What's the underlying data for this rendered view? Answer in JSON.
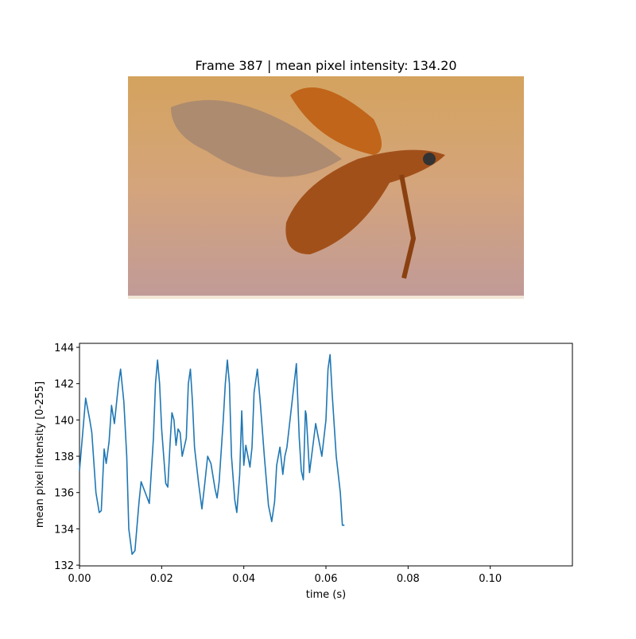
{
  "image_panel": {
    "title": "Frame 387 | mean pixel intensity: 134.20"
  },
  "chart_data": {
    "type": "line",
    "xlabel": "time (s)",
    "ylabel": "mean pixel intensity [0-255]",
    "xlim": [
      0,
      0.12
    ],
    "ylim": [
      131.96,
      144.22
    ],
    "xticks": [
      {
        "value": 0,
        "label": "0.00"
      },
      {
        "value": 0.02,
        "label": "0.02"
      },
      {
        "value": 0.04,
        "label": "0.04"
      },
      {
        "value": 0.06,
        "label": "0.06"
      },
      {
        "value": 0.08,
        "label": "0.08"
      },
      {
        "value": 0.1,
        "label": "0.10"
      }
    ],
    "yticks": [
      132,
      134,
      136,
      138,
      140,
      142,
      144
    ],
    "series": [
      {
        "color": "#1f77b4",
        "x": [
          0,
          0.0015,
          0.0025,
          0.003,
          0.004,
          0.0048,
          0.0053,
          0.006,
          0.0065,
          0.0072,
          0.0078,
          0.0085,
          0.0095,
          0.01,
          0.0108,
          0.0115,
          0.012,
          0.0128,
          0.0135,
          0.0145,
          0.015,
          0.016,
          0.017,
          0.018,
          0.0185,
          0.019,
          0.0195,
          0.02,
          0.021,
          0.0215,
          0.022,
          0.0225,
          0.023,
          0.0235,
          0.024,
          0.0245,
          0.025,
          0.026,
          0.0265,
          0.027,
          0.0275,
          0.028,
          0.029,
          0.0298,
          0.0305,
          0.0312,
          0.032,
          0.033,
          0.0335,
          0.034,
          0.035,
          0.0355,
          0.036,
          0.0365,
          0.037,
          0.0378,
          0.0383,
          0.039,
          0.0395,
          0.04,
          0.0405,
          0.041,
          0.0415,
          0.042,
          0.0425,
          0.0433,
          0.044,
          0.045,
          0.046,
          0.0468,
          0.0475,
          0.048,
          0.0488,
          0.0495,
          0.05,
          0.0505,
          0.052,
          0.0528,
          0.0535,
          0.054,
          0.0545,
          0.055,
          0.0552,
          0.056,
          0.0565,
          0.0575,
          0.059,
          0.06,
          0.0605,
          0.061,
          0.0615,
          0.0625,
          0.0635,
          0.064,
          0.0645
        ],
        "values": [
          137.2,
          141.2,
          140,
          139.3,
          136,
          134.9,
          135,
          138.4,
          137.6,
          138.8,
          140.8,
          139.8,
          142,
          142.8,
          141,
          138,
          134,
          132.6,
          132.8,
          135.5,
          136.6,
          136,
          135.4,
          139,
          142,
          143.3,
          142,
          139.5,
          136.5,
          136.3,
          138.5,
          140.4,
          140,
          138.6,
          139.5,
          139.3,
          138,
          139,
          142,
          142.8,
          141,
          138.5,
          136.5,
          135.1,
          136.5,
          138,
          137.6,
          136.2,
          135.7,
          136.6,
          140,
          142,
          143.3,
          142,
          138,
          135.6,
          134.9,
          137,
          140.5,
          137.5,
          138.6,
          138,
          137.4,
          138.5,
          141.5,
          142.8,
          141,
          138,
          135.3,
          134.4,
          135.5,
          137.5,
          138.5,
          137,
          138,
          138.5,
          141.5,
          143.1,
          139,
          137.2,
          136.7,
          140.5,
          140.3,
          137.1,
          138,
          139.8,
          138,
          140,
          142.8,
          143.6,
          141.5,
          138,
          136,
          134.2,
          134.2
        ]
      }
    ]
  }
}
